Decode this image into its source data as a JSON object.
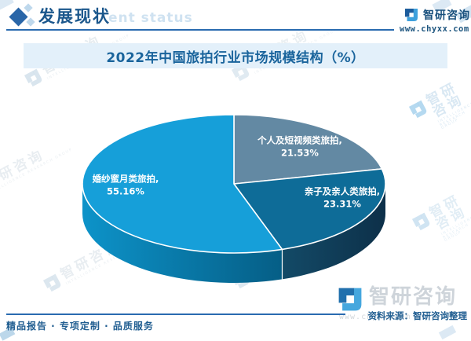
{
  "header": {
    "section_title": "发展现状",
    "section_watermark_tail": "ent status",
    "brand_name": "智研咨询",
    "website": "www.chyxx.com"
  },
  "chart_title": "2022年中国旅拍行业市场规模结构（%）",
  "chart_data": {
    "type": "pie",
    "title": "2022年中国旅拍行业市场规模结构（%）",
    "unit": "percent",
    "style": "3d",
    "start_angle_deg": 0,
    "direction": "clockwise",
    "legend_position": "none",
    "slices": [
      {
        "label": "个人及短视频类旅拍",
        "value": 21.53,
        "label_text": "个人及短视频类旅拍,",
        "value_text": "21.53%",
        "color": "#6389a3",
        "side_from": "#4e7691",
        "side_to": "#3d617a"
      },
      {
        "label": "亲子及亲人类旅拍",
        "value": 23.31,
        "label_text": "亲子及亲人类旅拍,",
        "value_text": "23.31%",
        "color": "#0e6c98",
        "side_from": "#134a67",
        "side_to": "#0d3049"
      },
      {
        "label": "婚纱蜜月类旅拍",
        "value": 55.16,
        "label_text": "婚纱蜜月类旅拍,",
        "value_text": "55.16%",
        "color": "#169fd9",
        "side_from": "#0d93c9",
        "side_to": "#055e86"
      }
    ]
  },
  "footer": {
    "tagline": "精品报告 · 专项定制 · 品质服务",
    "source": "资料来源：智研咨询整理"
  },
  "watermark": {
    "brand": "智研咨询",
    "subtext": "INTELLIGENCE RESEARCH GROUP",
    "website": "www.chyxx.com"
  },
  "colors": {
    "accent_blue": "#2a6bb0",
    "header_text": "#1b578c",
    "ghost_text": "#cfe2f1",
    "banner_bg": "#e3f0fa",
    "banner_text": "#1a649c",
    "footer_text": "#215e91",
    "logo_dark": "#1d5c9c",
    "logo_light": "#3ea0dc",
    "pie_label_text": "#ffffff",
    "big_watermark_text": "#ced4da"
  }
}
